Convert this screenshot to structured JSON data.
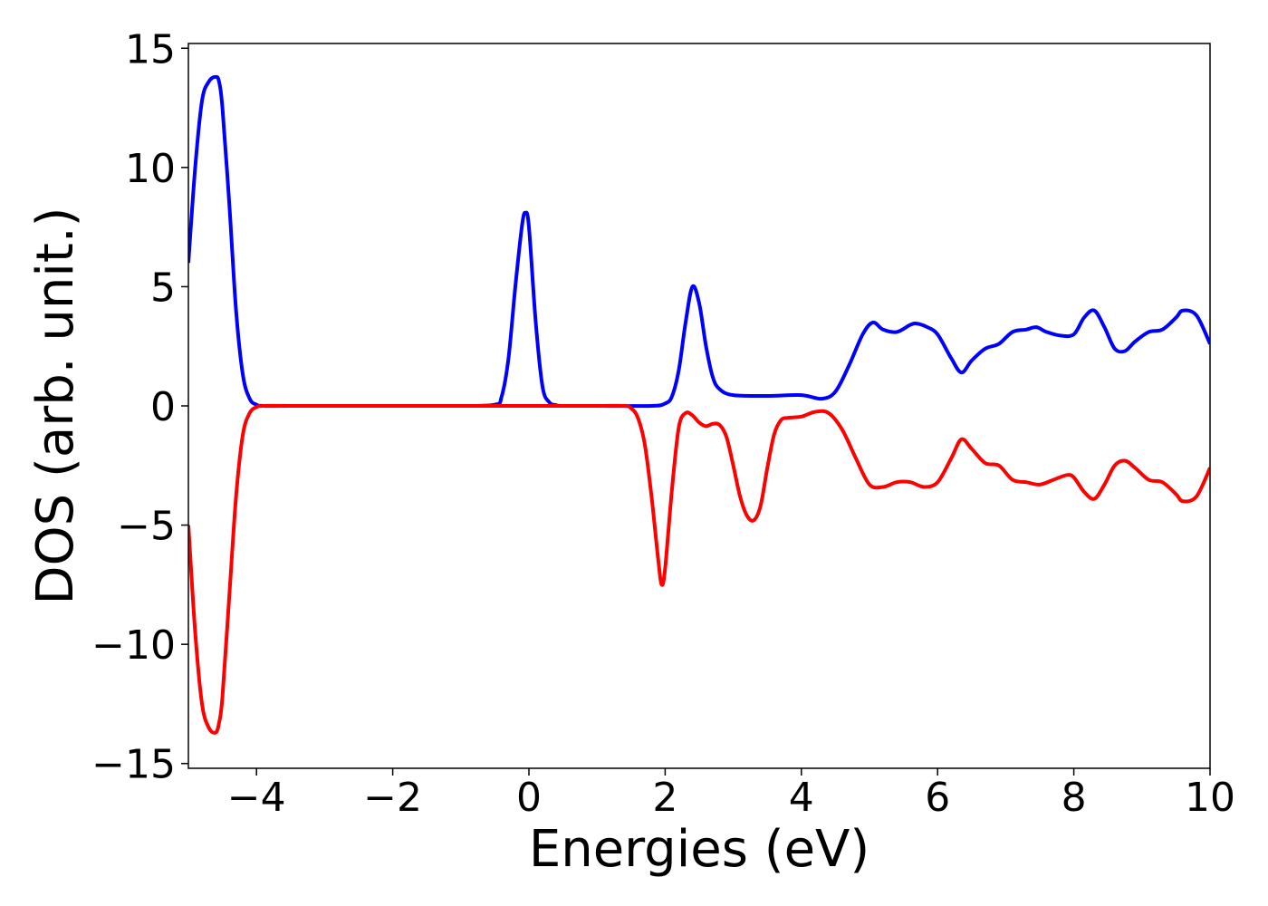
{
  "chart_data": {
    "type": "line",
    "title": "",
    "xlabel": "Energies (eV)",
    "ylabel": "DOS (arb. unit.)",
    "xlim": [
      -5,
      10
    ],
    "ylim": [
      -15.2,
      15.2
    ],
    "grid": false,
    "legend": "none",
    "x_ticks": [
      {
        "value": -4,
        "label": "−4"
      },
      {
        "value": -2,
        "label": "−2"
      },
      {
        "value": 0,
        "label": "0"
      },
      {
        "value": 2,
        "label": "2"
      },
      {
        "value": 4,
        "label": "4"
      },
      {
        "value": 6,
        "label": "6"
      },
      {
        "value": 8,
        "label": "8"
      },
      {
        "value": 10,
        "label": "10"
      }
    ],
    "y_ticks": [
      {
        "value": 15,
        "label": "15"
      },
      {
        "value": 10,
        "label": "10"
      },
      {
        "value": 5,
        "label": "5"
      },
      {
        "value": 0,
        "label": "0"
      },
      {
        "value": -5,
        "label": "−5"
      },
      {
        "value": -10,
        "label": "−10"
      },
      {
        "value": -15,
        "label": "−15"
      }
    ],
    "series": [
      {
        "color": "#0000ff",
        "x": [
          -5.0,
          -4.9,
          -4.8,
          -4.7,
          -4.6,
          -4.55,
          -4.5,
          -4.4,
          -4.3,
          -4.2,
          -4.1,
          -4.0,
          -3.9,
          -3.5,
          -2.0,
          -1.0,
          -0.5,
          -0.4,
          -0.3,
          -0.2,
          -0.1,
          -0.05,
          0.0,
          0.1,
          0.2,
          0.3,
          0.4,
          0.5,
          1.0,
          1.8,
          2.0,
          2.1,
          2.2,
          2.3,
          2.4,
          2.5,
          2.6,
          2.7,
          2.8,
          3.0,
          3.5,
          4.0,
          4.3,
          4.5,
          4.7,
          4.9,
          5.05,
          5.2,
          5.4,
          5.6,
          5.7,
          5.85,
          6.0,
          6.2,
          6.35,
          6.5,
          6.7,
          6.9,
          7.1,
          7.3,
          7.45,
          7.6,
          7.8,
          8.0,
          8.15,
          8.3,
          8.45,
          8.6,
          8.75,
          8.9,
          9.1,
          9.3,
          9.5,
          9.6,
          9.8,
          10.0
        ],
        "y": [
          6.0,
          10.0,
          12.8,
          13.6,
          13.8,
          13.6,
          12.5,
          8.5,
          4.0,
          1.3,
          0.3,
          0.05,
          0.0,
          0.0,
          0.0,
          0.0,
          0.05,
          0.4,
          2.0,
          5.0,
          7.6,
          8.1,
          7.5,
          3.5,
          0.8,
          0.15,
          0.03,
          0.0,
          0.0,
          0.0,
          0.1,
          0.4,
          1.5,
          3.5,
          5.0,
          4.3,
          2.5,
          1.2,
          0.7,
          0.45,
          0.42,
          0.45,
          0.3,
          0.6,
          1.7,
          3.0,
          3.5,
          3.2,
          3.1,
          3.4,
          3.45,
          3.3,
          3.0,
          2.0,
          1.4,
          1.9,
          2.4,
          2.6,
          3.1,
          3.2,
          3.3,
          3.1,
          2.95,
          3.0,
          3.7,
          4.0,
          3.3,
          2.4,
          2.3,
          2.7,
          3.1,
          3.2,
          3.7,
          4.0,
          3.8,
          2.6
        ]
      },
      {
        "color": "#ff0000",
        "x": [
          -5.0,
          -4.9,
          -4.8,
          -4.7,
          -4.6,
          -4.55,
          -4.5,
          -4.4,
          -4.3,
          -4.2,
          -4.1,
          -4.0,
          -3.9,
          -3.5,
          -2.0,
          0.0,
          1.0,
          1.4,
          1.5,
          1.6,
          1.7,
          1.8,
          1.9,
          1.95,
          2.0,
          2.1,
          2.2,
          2.3,
          2.4,
          2.5,
          2.6,
          2.7,
          2.8,
          2.9,
          3.0,
          3.1,
          3.2,
          3.3,
          3.4,
          3.5,
          3.6,
          3.7,
          3.8,
          4.0,
          4.2,
          4.4,
          4.6,
          4.8,
          5.0,
          5.2,
          5.4,
          5.6,
          5.8,
          6.0,
          6.2,
          6.35,
          6.5,
          6.7,
          6.9,
          7.1,
          7.3,
          7.5,
          7.7,
          7.9,
          8.0,
          8.15,
          8.3,
          8.45,
          8.6,
          8.75,
          8.9,
          9.1,
          9.3,
          9.5,
          9.6,
          9.8,
          10.0
        ],
        "y": [
          -5.0,
          -9.5,
          -12.5,
          -13.5,
          -13.7,
          -13.3,
          -12.2,
          -8.0,
          -3.8,
          -1.2,
          -0.3,
          -0.05,
          0.0,
          0.0,
          0.0,
          0.0,
          0.0,
          0.0,
          -0.1,
          -0.5,
          -1.6,
          -3.8,
          -6.5,
          -7.5,
          -6.8,
          -3.5,
          -0.9,
          -0.3,
          -0.4,
          -0.7,
          -0.85,
          -0.75,
          -0.8,
          -1.3,
          -2.5,
          -3.8,
          -4.6,
          -4.8,
          -4.2,
          -2.6,
          -1.2,
          -0.6,
          -0.5,
          -0.45,
          -0.25,
          -0.3,
          -1.0,
          -2.2,
          -3.3,
          -3.4,
          -3.2,
          -3.2,
          -3.4,
          -3.2,
          -2.2,
          -1.4,
          -1.8,
          -2.4,
          -2.5,
          -3.1,
          -3.2,
          -3.3,
          -3.1,
          -2.9,
          -3.0,
          -3.6,
          -3.9,
          -3.3,
          -2.5,
          -2.3,
          -2.6,
          -3.1,
          -3.2,
          -3.7,
          -4.0,
          -3.8,
          -2.6
        ]
      }
    ]
  }
}
